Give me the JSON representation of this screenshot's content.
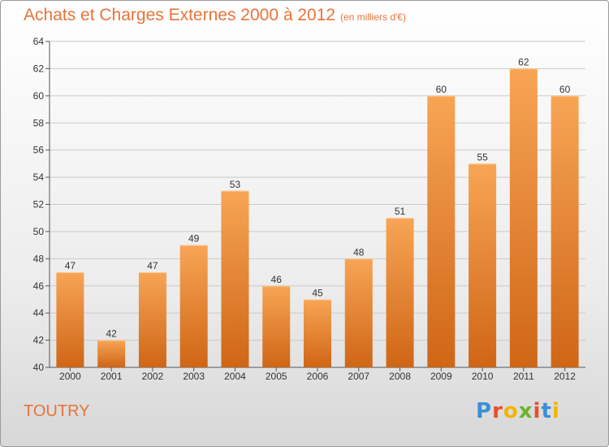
{
  "header": {
    "title": "Achats et Charges Externes 2000 à 2012",
    "subtitle": "(en milliers d'€)"
  },
  "footer": {
    "commune": "TOUTRY",
    "logo_text": "Proxiti"
  },
  "colors": {
    "bar_top": "#f7a555",
    "bar_bottom": "#cf6616",
    "accent": "#e8733a",
    "grid": "#c9c9c9"
  },
  "chart_data": {
    "type": "bar",
    "title": "Achats et Charges Externes 2000 à 2012",
    "subtitle": "(en milliers d'€)",
    "xlabel": "",
    "ylabel": "",
    "categories": [
      "2000",
      "2001",
      "2002",
      "2003",
      "2004",
      "2005",
      "2006",
      "2007",
      "2008",
      "2009",
      "2010",
      "2011",
      "2012"
    ],
    "values": [
      47,
      42,
      47,
      49,
      53,
      46,
      45,
      48,
      51,
      60,
      55,
      62,
      60
    ],
    "ylim": [
      40,
      64
    ],
    "yticks": [
      40,
      42,
      44,
      46,
      48,
      50,
      52,
      54,
      56,
      58,
      60,
      62,
      64
    ],
    "grid": true,
    "data_labels": true
  }
}
